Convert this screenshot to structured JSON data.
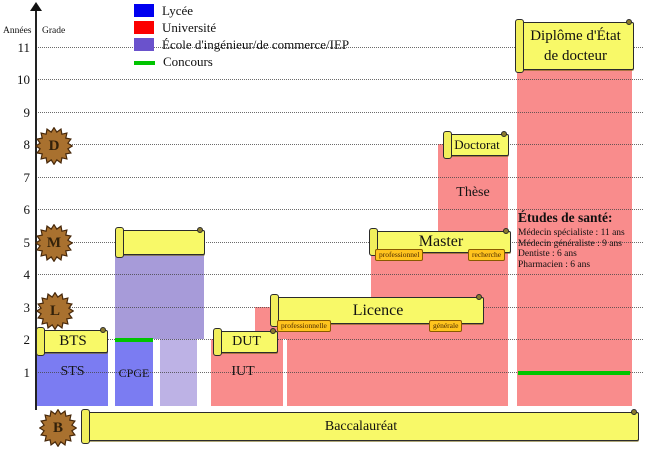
{
  "colors": {
    "lycee_blue": "#0000f0",
    "universite_red": "#fb0000",
    "ecole_purple": "#6a52cc",
    "concours_green": "#00c400",
    "bar_blue": "#7b7cf2",
    "bar_red": "#f98c8c",
    "bar_purple": "#a79bd9",
    "bar_purple_light": "#bdb2e5",
    "banner_yellow": "#f8f968",
    "tag_orange": "#ffc41e",
    "badge_brown": "#a9712f"
  },
  "axis": {
    "y_title": "Années",
    "grade_label": "Grade",
    "years": [
      "11",
      "10",
      "9",
      "8",
      "7",
      "6",
      "5",
      "4",
      "3",
      "2",
      "1"
    ]
  },
  "legend": {
    "items": [
      {
        "label": "Lycée",
        "color": "#0000f0"
      },
      {
        "label": "Université",
        "color": "#fb0000"
      },
      {
        "label": "École d'ingénieur/de commerce/IEP",
        "color": "#6a52cc"
      },
      {
        "label": "Concours",
        "color": "#00c400"
      }
    ]
  },
  "badges": [
    "D",
    "M",
    "L",
    "B"
  ],
  "bars": {
    "sts": "STS",
    "cpge": "CPGE",
    "iut": "IUT",
    "these": "Thèse"
  },
  "banners": {
    "bts": "BTS",
    "dut": "DUT",
    "licence": "Licence",
    "licence_tag_left": "professionnelle",
    "licence_tag_right": "générale",
    "master": "Master",
    "master_tag_left": "professionnel",
    "master_tag_right": "recherche",
    "doctorat": "Doctorat",
    "diplome_line1": "Diplôme d'État",
    "diplome_line2": "de docteur",
    "baccalaureat": "Baccalauréat",
    "ecole": ""
  },
  "sante": {
    "title": "Études de santé:",
    "items": [
      "Médecin spécialiste : 11 ans",
      "Médecin généraliste : 9 ans",
      "Dentiste : 6 ans",
      "Pharmacien : 6 ans"
    ]
  }
}
